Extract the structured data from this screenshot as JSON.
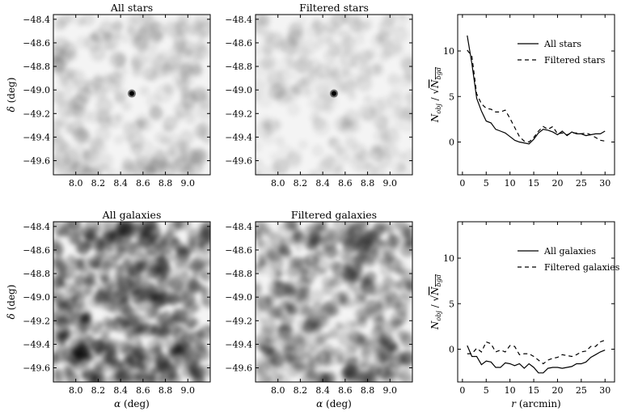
{
  "chart_data": [
    {
      "type": "heatmap",
      "title": "All stars",
      "xlabel": "",
      "ylabel": "δ (deg)",
      "xticks": [
        "8.0",
        "8.2",
        "8.4",
        "8.6",
        "8.8",
        "9.0"
      ],
      "yticks": [
        "-48.4",
        "-48.6",
        "-48.8",
        "-49.0",
        "-49.2",
        "-49.4",
        "-49.6"
      ],
      "xlim": [
        7.8,
        9.2
      ],
      "ylim": [
        -49.72,
        -48.36
      ],
      "density": "low",
      "peak": {
        "x": 8.5,
        "y": -49.03
      }
    },
    {
      "type": "heatmap",
      "title": "Filtered stars",
      "xlabel": "",
      "ylabel": "",
      "xticks": [
        "8.0",
        "8.2",
        "8.4",
        "8.6",
        "8.8",
        "9.0"
      ],
      "yticks": [
        "-48.4",
        "-48.6",
        "-48.8",
        "-49.0",
        "-49.2",
        "-49.4",
        "-49.6"
      ],
      "xlim": [
        7.8,
        9.2
      ],
      "ylim": [
        -49.72,
        -48.36
      ],
      "density": "very-low",
      "peak": {
        "x": 8.5,
        "y": -49.03
      }
    },
    {
      "type": "line",
      "title": "",
      "xlabel": "",
      "ylabel": "N_obj / √N_bgd",
      "xticks": [
        "0",
        "5",
        "10",
        "15",
        "20",
        "25",
        "30"
      ],
      "yticks": [
        "0",
        "5",
        "10"
      ],
      "xlim": [
        -1,
        32
      ],
      "ylim": [
        -3.6,
        14
      ],
      "legend_position": "top-right",
      "series": [
        {
          "name": "All stars",
          "style": "solid",
          "x": [
            1,
            2,
            3,
            4,
            5,
            6,
            7,
            8,
            9,
            10,
            11,
            12,
            13,
            14,
            15,
            16,
            17,
            18,
            19,
            20,
            21,
            22,
            23,
            24,
            25,
            26,
            27,
            28,
            29,
            30
          ],
          "y": [
            11.7,
            8.6,
            4.8,
            3.4,
            2.3,
            2.1,
            1.4,
            1.2,
            1.0,
            0.6,
            0.2,
            0.0,
            -0.1,
            -0.2,
            0.3,
            1.0,
            1.4,
            1.3,
            1.1,
            0.8,
            1.2,
            0.7,
            1.1,
            0.9,
            0.9,
            0.7,
            0.8,
            0.9,
            0.9,
            1.2
          ]
        },
        {
          "name": "Filtered stars",
          "style": "dashed",
          "x": [
            1,
            2,
            3,
            4,
            5,
            6,
            7,
            8,
            9,
            10,
            11,
            12,
            13,
            14,
            15,
            16,
            17,
            18,
            19,
            20,
            21,
            22,
            23,
            24,
            25,
            26,
            27,
            28,
            29,
            30
          ],
          "y": [
            10.1,
            9.4,
            5.3,
            4.2,
            3.7,
            3.6,
            3.3,
            3.3,
            3.5,
            2.6,
            1.6,
            0.6,
            0.1,
            0.0,
            0.5,
            1.2,
            1.7,
            1.4,
            1.7,
            0.9,
            1.0,
            0.8,
            1.0,
            1.0,
            0.9,
            1.0,
            0.8,
            0.5,
            0.2,
            0.1
          ]
        }
      ]
    },
    {
      "type": "heatmap",
      "title": "All galaxies",
      "xlabel": "α (deg)",
      "ylabel": "δ (deg)",
      "xticks": [
        "8.0",
        "8.2",
        "8.4",
        "8.6",
        "8.8",
        "9.0"
      ],
      "yticks": [
        "-48.4",
        "-48.6",
        "-48.8",
        "-49.0",
        "-49.2",
        "-49.4",
        "-49.6"
      ],
      "xlim": [
        7.8,
        9.2
      ],
      "ylim": [
        -49.72,
        -48.36
      ],
      "density": "high"
    },
    {
      "type": "heatmap",
      "title": "Filtered galaxies",
      "xlabel": "α (deg)",
      "ylabel": "",
      "xticks": [
        "8.0",
        "8.2",
        "8.4",
        "8.6",
        "8.8",
        "9.0"
      ],
      "yticks": [
        "-48.4",
        "-48.6",
        "-48.8",
        "-49.0",
        "-49.2",
        "-49.4",
        "-49.6"
      ],
      "xlim": [
        7.8,
        9.2
      ],
      "ylim": [
        -49.72,
        -48.36
      ],
      "density": "medium"
    },
    {
      "type": "line",
      "title": "",
      "xlabel": "r (arcmin)",
      "ylabel": "N_obj / √N_bgd",
      "xticks": [
        "0",
        "5",
        "10",
        "15",
        "20",
        "25",
        "30"
      ],
      "yticks": [
        "0",
        "5",
        "10"
      ],
      "xlim": [
        -1,
        32
      ],
      "ylim": [
        -3.6,
        14
      ],
      "legend_position": "top-right",
      "series": [
        {
          "name": "All galaxies",
          "style": "solid",
          "x": [
            1,
            2,
            3,
            4,
            5,
            6,
            7,
            8,
            9,
            10,
            11,
            12,
            13,
            14,
            15,
            16,
            17,
            18,
            19,
            20,
            21,
            22,
            23,
            24,
            25,
            26,
            27,
            28,
            29,
            30
          ],
          "y": [
            0.4,
            -0.8,
            -0.8,
            -1.7,
            -1.3,
            -1.4,
            -2.0,
            -2.0,
            -1.5,
            -1.6,
            -1.8,
            -1.6,
            -2.1,
            -1.6,
            -2.0,
            -2.6,
            -2.6,
            -2.1,
            -2.0,
            -2.0,
            -2.1,
            -2.0,
            -1.9,
            -1.6,
            -1.6,
            -1.4,
            -0.9,
            -0.6,
            -0.3,
            -0.1
          ]
        },
        {
          "name": "Filtered galaxies",
          "style": "dashed",
          "x": [
            1,
            2,
            3,
            4,
            5,
            6,
            7,
            8,
            9,
            10,
            11,
            12,
            13,
            14,
            15,
            16,
            17,
            18,
            19,
            20,
            21,
            22,
            23,
            24,
            25,
            26,
            27,
            28,
            29,
            30
          ],
          "y": [
            -0.5,
            -0.5,
            0.1,
            -0.3,
            0.8,
            0.6,
            -0.3,
            -0.1,
            -0.3,
            0.4,
            0.3,
            -0.6,
            -0.5,
            -0.5,
            -0.8,
            -1.2,
            -1.6,
            -1.2,
            -1.0,
            -0.9,
            -0.6,
            -0.7,
            -0.8,
            -0.6,
            -0.3,
            -0.2,
            0.3,
            0.3,
            0.8,
            1.0
          ]
        }
      ]
    }
  ]
}
